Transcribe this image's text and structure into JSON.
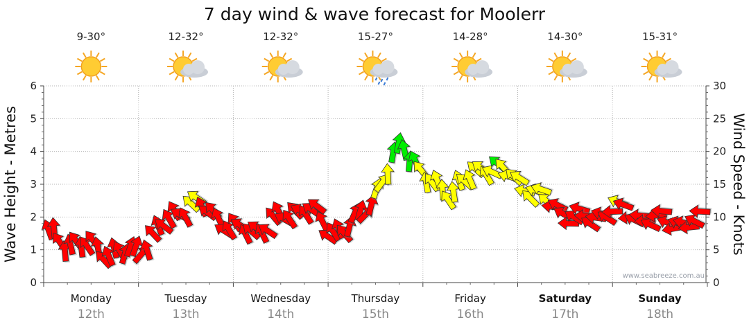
{
  "chart_data": {
    "type": "line",
    "title": "7 day wind & wave forecast for Moolerr",
    "ylabel_left": "Wave Height - Metres",
    "ylabel_right": "Wind Speed - Knots",
    "ylim_left": [
      0,
      6
    ],
    "ylim_right": [
      0,
      30
    ],
    "yticks_left": [
      "0",
      "1",
      "2",
      "3",
      "4",
      "5",
      "6"
    ],
    "yticks_right": [
      "0",
      "5",
      "10",
      "15",
      "20",
      "25",
      "30"
    ],
    "watermark": "www.seabreeze.com.au",
    "days": [
      {
        "name": "Monday",
        "date": "12th",
        "temp": "9-30°",
        "weather": "sunny",
        "weekend": false
      },
      {
        "name": "Tuesday",
        "date": "13th",
        "temp": "12-32°",
        "weather": "partly-cloudy",
        "weekend": false
      },
      {
        "name": "Wednesday",
        "date": "14th",
        "temp": "12-32°",
        "weather": "partly-cloudy",
        "weekend": false
      },
      {
        "name": "Thursday",
        "date": "15th",
        "temp": "15-27°",
        "weather": "showers",
        "weekend": false
      },
      {
        "name": "Friday",
        "date": "16th",
        "temp": "14-28°",
        "weather": "partly-cloudy",
        "weekend": false
      },
      {
        "name": "Saturday",
        "date": "17th",
        "temp": "14-30°",
        "weather": "partly-cloudy",
        "weekend": true
      },
      {
        "name": "Sunday",
        "date": "18th",
        "temp": "15-31°",
        "weather": "partly-cloudy",
        "weekend": true
      }
    ],
    "colors": {
      "calm": "#ff0000",
      "moderate": "#ffff00",
      "strong": "#00ee00"
    },
    "wind_series": {
      "name": "Wind speed (knots)",
      "x_days": [
        0.05,
        0.25,
        0.5,
        0.75,
        1.0,
        1.15,
        1.3,
        1.4,
        1.55,
        1.75,
        2.0,
        2.25,
        2.45,
        2.6,
        2.75,
        2.9,
        3.0,
        3.15,
        3.3,
        3.45,
        3.6,
        3.7,
        3.8,
        3.9,
        4.0,
        4.15,
        4.3,
        4.5,
        4.7,
        4.9,
        5.0,
        5.25,
        5.5,
        5.75,
        5.85,
        6.0,
        6.25,
        6.5,
        6.75,
        6.95
      ],
      "values": [
        7.5,
        6,
        5.5,
        4.5,
        5,
        7,
        9.5,
        10.5,
        12,
        11,
        8,
        8,
        9.5,
        10.5,
        11.5,
        10,
        8,
        8,
        9.5,
        12.5,
        16,
        19.5,
        21,
        19,
        16,
        14.5,
        14,
        16,
        18,
        16.5,
        15.5,
        13,
        10.5,
        9.5,
        10,
        11.5,
        10,
        9.5,
        9,
        9.5
      ],
      "directions_deg": [
        -20,
        -15,
        -30,
        -25,
        40,
        -40,
        -35,
        -40,
        -45,
        -40,
        -40,
        -45,
        -40,
        -45,
        -50,
        -45,
        -40,
        -30,
        30,
        25,
        20,
        0,
        5,
        -20,
        -30,
        -20,
        -15,
        -40,
        -50,
        -55,
        -60,
        -65,
        -70,
        -75,
        -70,
        -75,
        -80,
        -85,
        -80,
        -80
      ]
    }
  }
}
